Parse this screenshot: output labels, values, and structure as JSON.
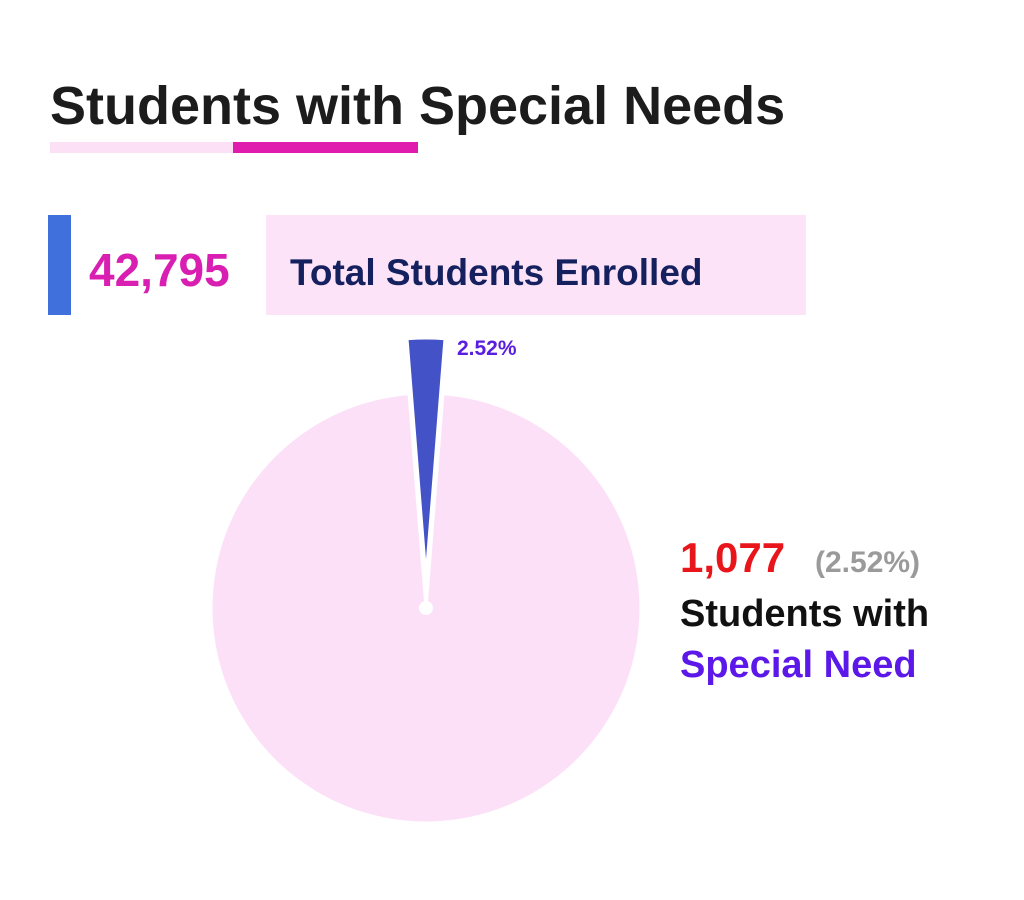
{
  "chart_data": {
    "type": "pie",
    "title": "Students with Special Needs",
    "values": [
      2.52,
      97.48
    ],
    "value_labels": [
      "2.52%",
      null
    ],
    "colors": [
      "#4452c8",
      "#fce0f8"
    ]
  },
  "total": {
    "count": "42,795",
    "label": "Total Students Enrolled"
  },
  "callout": {
    "count": "1,077",
    "percent": "(2.52%)",
    "line1": "Students with",
    "line2": "Special Need"
  }
}
